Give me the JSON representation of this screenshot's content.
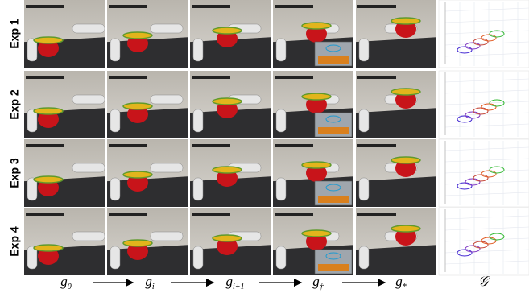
{
  "rows": [
    "Exp 1",
    "Exp 2",
    "Exp 3",
    "Exp 4"
  ],
  "columns": [
    {
      "base": "g",
      "sub": "0"
    },
    {
      "base": "g",
      "sub": "i"
    },
    {
      "base": "g",
      "sub": "i+1"
    },
    {
      "base": "g",
      "sub": "†"
    },
    {
      "base": "g",
      "sub": "*"
    },
    {
      "base": "𝒢"
    }
  ]
}
